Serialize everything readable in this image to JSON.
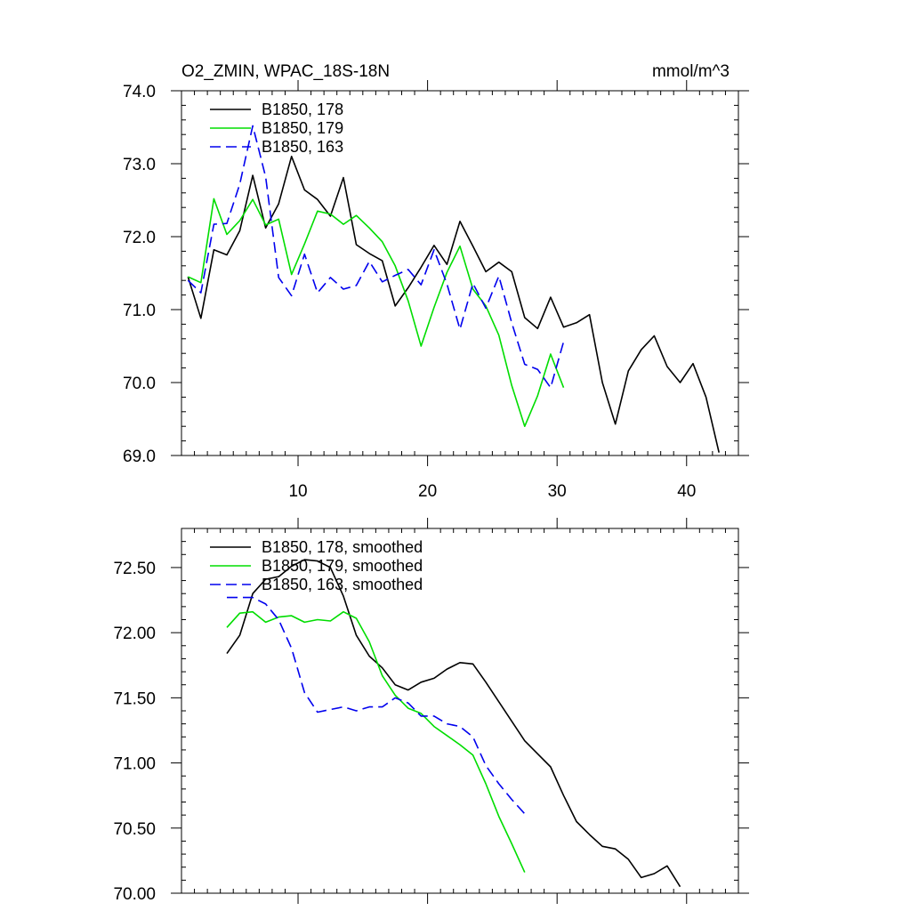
{
  "chart_data": [
    {
      "type": "line",
      "title": "O2_ZMIN, WPAC_18S-18N",
      "units": "mmol/m^3",
      "xlabel": "",
      "ylabel": "",
      "xlim": [
        1,
        44
      ],
      "ylim": [
        69.0,
        74.0
      ],
      "xticks": [
        10,
        20,
        30,
        40
      ],
      "yticks": [
        69.0,
        70.0,
        71.0,
        72.0,
        73.0,
        74.0
      ],
      "ytick_labels": [
        "69.0",
        "70.0",
        "71.0",
        "72.0",
        "73.0",
        "74.0"
      ],
      "legend_position": "top-left",
      "series": [
        {
          "name": "B1850, 178",
          "color": "#000000",
          "dash": "solid",
          "x": [
            1.5,
            2.5,
            3.5,
            4.5,
            5.5,
            6.5,
            7.5,
            8.5,
            9.5,
            10.5,
            11.5,
            12.5,
            13.5,
            14.5,
            15.5,
            16.5,
            17.5,
            18.5,
            19.5,
            20.5,
            21.5,
            22.5,
            23.5,
            24.5,
            25.5,
            26.5,
            27.5,
            28.5,
            29.5,
            30.5,
            31.5,
            32.5,
            33.5,
            34.5,
            35.5,
            36.5,
            37.5,
            38.5,
            39.5,
            40.5,
            41.5,
            42.5
          ],
          "y": [
            71.45,
            70.88,
            71.82,
            71.75,
            72.08,
            72.84,
            72.12,
            72.45,
            73.1,
            72.64,
            72.51,
            72.28,
            72.81,
            71.89,
            71.77,
            71.67,
            71.05,
            71.3,
            71.58,
            71.88,
            71.62,
            72.21,
            71.87,
            71.52,
            71.65,
            71.52,
            70.89,
            70.74,
            71.17,
            70.76,
            70.82,
            70.93,
            70.0,
            69.43,
            70.16,
            70.45,
            70.64,
            70.22,
            70.0,
            70.26,
            69.8,
            69.04
          ]
        },
        {
          "name": "B1850, 179",
          "color": "#00dd00",
          "dash": "solid",
          "x": [
            1.5,
            2.5,
            3.5,
            4.5,
            5.5,
            6.5,
            7.5,
            8.5,
            9.5,
            10.5,
            11.5,
            12.5,
            13.5,
            14.5,
            15.5,
            16.5,
            17.5,
            18.5,
            19.5,
            20.5,
            21.5,
            22.5,
            23.5,
            24.5,
            25.5,
            26.5,
            27.5,
            28.5,
            29.5,
            30.5
          ],
          "y": [
            71.45,
            71.37,
            72.52,
            72.03,
            72.22,
            72.51,
            72.16,
            72.24,
            71.48,
            71.9,
            72.35,
            72.31,
            72.17,
            72.29,
            72.12,
            71.93,
            71.6,
            71.12,
            70.5,
            71.03,
            71.51,
            71.87,
            71.28,
            71.05,
            70.65,
            69.96,
            69.4,
            69.82,
            70.39,
            69.93
          ]
        },
        {
          "name": "B1850, 163",
          "color": "#0000ee",
          "dash": "dashed",
          "x": [
            1.5,
            2.5,
            3.5,
            4.5,
            5.5,
            6.5,
            7.5,
            8.5,
            9.5,
            10.5,
            11.5,
            12.5,
            13.5,
            14.5,
            15.5,
            16.5,
            17.5,
            18.5,
            19.5,
            20.5,
            21.5,
            22.5,
            23.5,
            24.5,
            25.5,
            26.5,
            27.5,
            28.5,
            29.5,
            30.5
          ],
          "y": [
            71.4,
            71.23,
            72.17,
            72.18,
            72.72,
            73.52,
            72.82,
            71.44,
            71.19,
            71.76,
            71.23,
            71.44,
            71.28,
            71.33,
            71.66,
            71.38,
            71.47,
            71.55,
            71.34,
            71.82,
            71.35,
            70.73,
            71.36,
            71.02,
            71.46,
            70.82,
            70.25,
            70.18,
            69.93,
            70.56
          ]
        }
      ]
    },
    {
      "type": "line",
      "title": "",
      "xlabel": "",
      "ylabel": "",
      "xlim": [
        1,
        44
      ],
      "ylim": [
        70.0,
        72.8
      ],
      "xticks": [
        10,
        20,
        30,
        40
      ],
      "yticks": [
        70.0,
        70.5,
        71.0,
        71.5,
        72.0,
        72.5
      ],
      "ytick_labels": [
        "70.00",
        "70.50",
        "71.00",
        "71.50",
        "72.00",
        "72.50"
      ],
      "legend_position": "top-left",
      "series": [
        {
          "name": "B1850, 178, smoothed",
          "color": "#000000",
          "dash": "solid",
          "x": [
            4.5,
            5.5,
            6.5,
            7.5,
            8.5,
            9.5,
            10.5,
            11.5,
            12.5,
            13.5,
            14.5,
            15.5,
            16.5,
            17.5,
            18.5,
            19.5,
            20.5,
            21.5,
            22.5,
            23.5,
            24.5,
            25.5,
            26.5,
            27.5,
            28.5,
            29.5,
            30.5,
            31.5,
            32.5,
            33.5,
            34.5,
            35.5,
            36.5,
            37.5,
            38.5,
            39.5
          ],
          "y": [
            71.84,
            71.98,
            72.3,
            72.41,
            72.43,
            72.51,
            72.56,
            72.55,
            72.5,
            72.28,
            71.98,
            71.82,
            71.73,
            71.6,
            71.56,
            71.62,
            71.65,
            71.72,
            71.77,
            71.76,
            71.62,
            71.47,
            71.32,
            71.17,
            71.07,
            70.97,
            70.75,
            70.55,
            70.45,
            70.36,
            70.34,
            70.26,
            70.12,
            70.15,
            70.21,
            70.05
          ]
        },
        {
          "name": "B1850, 179, smoothed",
          "color": "#00dd00",
          "dash": "solid",
          "x": [
            4.5,
            5.5,
            6.5,
            7.5,
            8.5,
            9.5,
            10.5,
            11.5,
            12.5,
            13.5,
            14.5,
            15.5,
            16.5,
            17.5,
            18.5,
            19.5,
            20.5,
            21.5,
            22.5,
            23.5,
            24.5,
            25.5,
            26.5,
            27.5
          ],
          "y": [
            72.04,
            72.15,
            72.16,
            72.08,
            72.12,
            72.13,
            72.08,
            72.1,
            72.09,
            72.16,
            72.11,
            71.93,
            71.67,
            71.52,
            71.42,
            71.38,
            71.28,
            71.21,
            71.14,
            71.06,
            70.84,
            70.59,
            70.38,
            70.16
          ]
        },
        {
          "name": "B1850, 163, smoothed",
          "color": "#0000ee",
          "dash": "dashed",
          "x": [
            4.5,
            5.5,
            6.5,
            7.5,
            8.5,
            9.5,
            10.5,
            11.5,
            12.5,
            13.5,
            14.5,
            15.5,
            16.5,
            17.5,
            18.5,
            19.5,
            20.5,
            21.5,
            22.5,
            23.5,
            24.5,
            25.5,
            26.5,
            27.5
          ],
          "y": [
            72.27,
            72.27,
            72.27,
            72.22,
            72.1,
            71.88,
            71.54,
            71.39,
            71.41,
            71.43,
            71.4,
            71.43,
            71.43,
            71.5,
            71.46,
            71.36,
            71.36,
            71.3,
            71.28,
            71.2,
            70.98,
            70.84,
            70.72,
            70.61
          ]
        }
      ]
    }
  ]
}
